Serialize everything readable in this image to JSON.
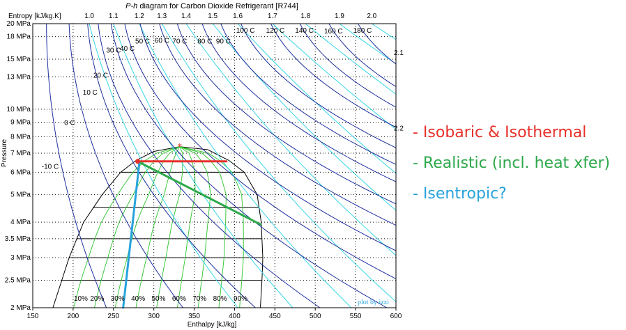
{
  "chart_data": {
    "type": "line",
    "title_prefix": "P-h",
    "title": " diagram for Carbon Dioxide Refrigerant [R744]",
    "xlabel": "Enthalpy [kJ/kg]",
    "ylabel": "Pressure",
    "top_axis_label": "Entropy [kJ/kg.K]",
    "xlim": [
      150,
      600
    ],
    "ylim_MPa": [
      2,
      20
    ],
    "y_scale": "log",
    "x_ticks": [
      "150",
      "200",
      "250",
      "300",
      "350",
      "400",
      "450",
      "500",
      "550",
      "600"
    ],
    "y_ticks": [
      {
        "value": 20,
        "label": "20 MPa"
      },
      {
        "value": 18,
        "label": "18 MPa"
      },
      {
        "value": 15,
        "label": "15 MPa"
      },
      {
        "value": 13,
        "label": "13 MPa"
      },
      {
        "value": 10,
        "label": "10 MPa"
      },
      {
        "value": 9,
        "label": "9 MPa"
      },
      {
        "value": 8,
        "label": "8 MPa"
      },
      {
        "value": 7,
        "label": "7 MPa"
      },
      {
        "value": 6,
        "label": "6 MPa"
      },
      {
        "value": 5,
        "label": "5 MPa"
      },
      {
        "value": 4,
        "label": "4 MPa"
      },
      {
        "value": 3.5,
        "label": "3.5 MPa"
      },
      {
        "value": 3,
        "label": "3 MPa"
      },
      {
        "value": 2.5,
        "label": "2.5 MPa"
      },
      {
        "value": 2,
        "label": "2 MPa"
      }
    ],
    "entropy_ticks": [
      {
        "label": "1.0",
        "h": 220
      },
      {
        "label": "1.1",
        "h": 250
      },
      {
        "label": "1.2",
        "h": 282
      },
      {
        "label": "1.3",
        "h": 310
      },
      {
        "label": "1.4",
        "h": 340
      },
      {
        "label": "1.5",
        "h": 373
      },
      {
        "label": "1.6",
        "h": 404
      },
      {
        "label": "1.7",
        "h": 447
      },
      {
        "label": "1.8",
        "h": 488
      },
      {
        "label": "1.9",
        "h": 530
      },
      {
        "label": "2.0",
        "h": 570
      }
    ],
    "entropy_right_labels": [
      {
        "label": "2.1",
        "p": 15.5
      },
      {
        "label": "2.2",
        "p": 8.4
      }
    ],
    "quality_labels": [
      "10%",
      "20%",
      "30%",
      "40%",
      "50%",
      "60%",
      "70%",
      "80%",
      "90%"
    ],
    "isotherm_labels": [
      {
        "label": "-10 C",
        "h": 161,
        "p": 6.3
      },
      {
        "label": "0 C",
        "h": 189,
        "p": 9.0
      },
      {
        "label": "10 C",
        "h": 212,
        "p": 11.5
      },
      {
        "label": "20 C",
        "h": 225,
        "p": 13.2
      },
      {
        "label": "30 C",
        "h": 241,
        "p": 16.2
      },
      {
        "label": "40 C",
        "h": 258,
        "p": 16.4
      },
      {
        "label": "50 C",
        "h": 277,
        "p": 17.4
      },
      {
        "label": "60 C",
        "h": 301,
        "p": 17.5
      },
      {
        "label": "70 C",
        "h": 323,
        "p": 17.4
      },
      {
        "label": "80 C",
        "h": 354,
        "p": 17.4
      },
      {
        "label": "90 C",
        "h": 377,
        "p": 17.4
      },
      {
        "label": "100 C",
        "h": 402,
        "p": 19.0
      },
      {
        "label": "120 C",
        "h": 439,
        "p": 19.0
      },
      {
        "label": "140 C",
        "h": 475,
        "p": 19.0
      },
      {
        "label": "160 C",
        "h": 511,
        "p": 18.9
      },
      {
        "label": "180 C",
        "h": 547,
        "p": 19.0
      }
    ],
    "dome": {
      "liquid": [
        [
          175,
          2.0
        ],
        [
          195,
          3.0
        ],
        [
          213,
          4.0
        ],
        [
          236,
          5.0
        ],
        [
          259,
          6.0
        ],
        [
          278,
          6.6
        ],
        [
          300,
          7.1
        ],
        [
          332,
          7.38
        ]
      ],
      "vapor": [
        [
          332,
          7.38
        ],
        [
          367,
          7.2
        ],
        [
          393,
          6.6
        ],
        [
          412,
          6.0
        ],
        [
          428,
          5.0
        ],
        [
          433,
          4.0
        ],
        [
          435,
          3.0
        ],
        [
          434,
          2.5
        ],
        [
          432,
          2.0
        ]
      ]
    },
    "critical_point": {
      "h": 332,
      "p": 7.38
    },
    "series": [
      {
        "name": "Isobaric & Isothermal",
        "color": "#e8302a",
        "points": [
          [
            280,
            6.55
          ],
          [
            390,
            6.55
          ]
        ]
      },
      {
        "name": "Realistic (incl. heat xfer)",
        "color": "#2ca84a",
        "points": [
          [
            280,
            6.55
          ],
          [
            432,
            3.93
          ]
        ]
      },
      {
        "name": "Isentropic?",
        "color": "#27a3dc",
        "points": [
          [
            282,
            6.45
          ],
          [
            262,
            2.0
          ]
        ]
      }
    ],
    "watermark": "plot by izzi"
  },
  "legend": [
    {
      "text": "- Isobaric & Isothermal",
      "color": "#e8302a"
    },
    {
      "text": "- Realistic (incl. heat xfer)",
      "color": "#2ca84a"
    },
    {
      "text": "- Isentropic?",
      "color": "#27a3dc"
    }
  ]
}
